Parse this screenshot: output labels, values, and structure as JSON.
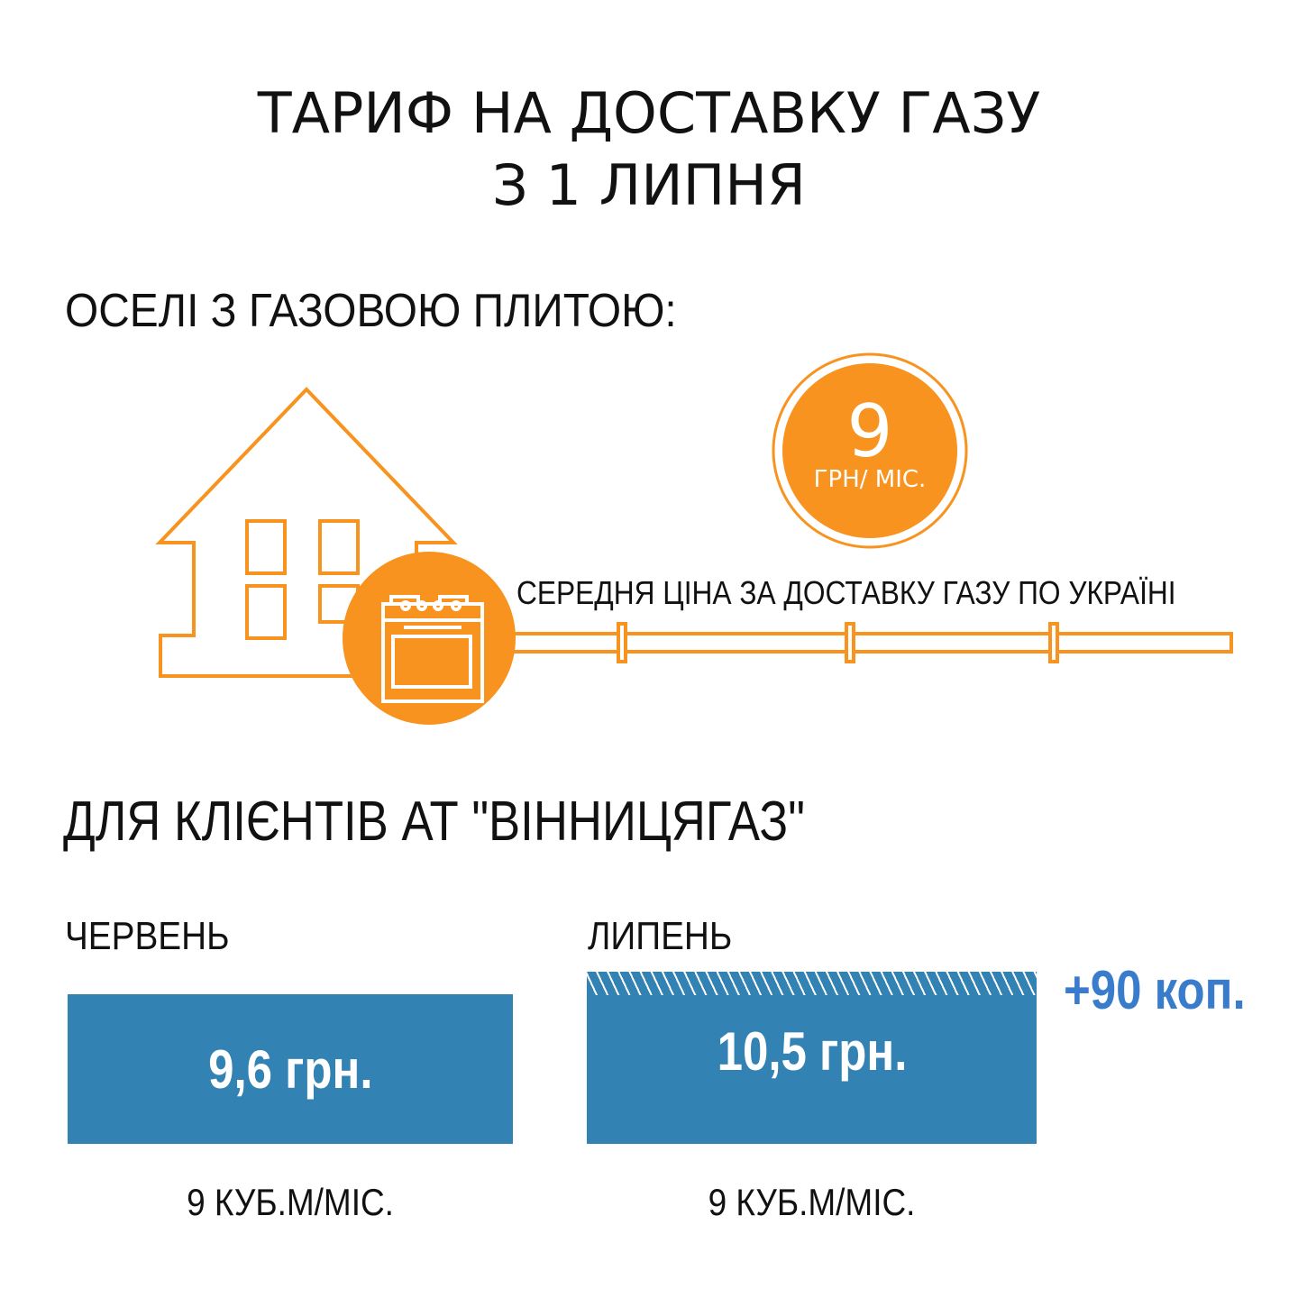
{
  "title": {
    "line1": "ТАРИФ НА ДОСТАВКУ ГАЗУ",
    "line2": "З 1 ЛИПНЯ"
  },
  "section1": {
    "heading": "ОСЕЛІ З ГАЗОВОЮ ПЛИТОЮ:",
    "badge_value": "9",
    "badge_unit": "ГРН/ МІС.",
    "pipe_label": "СЕРЕДНЯ ЦІНА ЗА ДОСТАВКУ ГАЗУ ПО УКРАЇНІ",
    "icons": [
      "house-icon",
      "stove-icon",
      "pipe-icon"
    ]
  },
  "section2": {
    "heading": "ДЛЯ КЛІЄНТІВ АТ \"ВІННИЦЯГАЗ\"",
    "june": {
      "label": "ЧЕРВЕНЬ",
      "value": "9,6 грн.",
      "volume": "9 КУБ.М/МІС."
    },
    "july": {
      "label": "ЛИПЕНЬ",
      "value": "10,5 грн.",
      "volume": "9 КУБ.М/МІС."
    },
    "increase": "+90 коп."
  },
  "colors": {
    "orange": "#F7931E",
    "blue": "#3282B4",
    "increase": "#3A7CCC"
  }
}
